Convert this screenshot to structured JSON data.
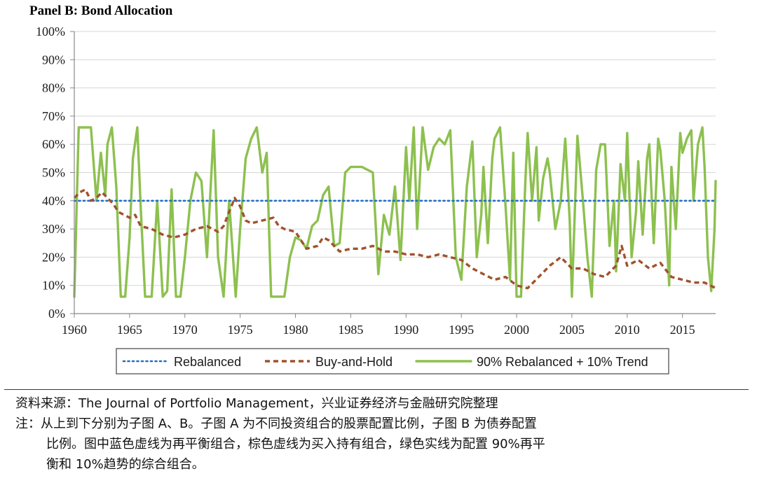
{
  "chart_data": {
    "type": "line",
    "title": "Panel B: Bond Allocation",
    "xlabel": "",
    "ylabel": "",
    "xlim": [
      1960,
      2018
    ],
    "ylim": [
      0,
      100
    ],
    "x_ticks": [
      "1960",
      "1965",
      "1970",
      "1975",
      "1980",
      "1985",
      "1990",
      "1995",
      "2000",
      "2005",
      "2010",
      "2015"
    ],
    "y_ticks": [
      "0%",
      "10%",
      "20%",
      "30%",
      "40%",
      "50%",
      "60%",
      "70%",
      "80%",
      "90%",
      "100%"
    ],
    "grid": "horizontal",
    "legend_position": "bottom",
    "series": [
      {
        "name": "Rebalanced",
        "color": "#1f6fc5",
        "style": "dotted",
        "points": [
          [
            1960,
            40
          ],
          [
            2018,
            40
          ]
        ]
      },
      {
        "name": "Buy-and-Hold",
        "color": "#a0522d",
        "style": "dashed",
        "points": [
          [
            1960,
            41
          ],
          [
            1960.5,
            43
          ],
          [
            1961,
            44
          ],
          [
            1961.5,
            40
          ],
          [
            1962,
            41
          ],
          [
            1962.5,
            43
          ],
          [
            1963,
            41
          ],
          [
            1963.5,
            39
          ],
          [
            1964,
            36
          ],
          [
            1965,
            34
          ],
          [
            1965.5,
            35
          ],
          [
            1966,
            31
          ],
          [
            1967,
            30
          ],
          [
            1968,
            28
          ],
          [
            1969,
            27
          ],
          [
            1970,
            28
          ],
          [
            1971,
            30
          ],
          [
            1972,
            31
          ],
          [
            1973,
            29
          ],
          [
            1973.5,
            31
          ],
          [
            1974,
            36
          ],
          [
            1974.5,
            41
          ],
          [
            1975,
            38
          ],
          [
            1975.5,
            33
          ],
          [
            1976,
            32
          ],
          [
            1977,
            33
          ],
          [
            1978,
            34
          ],
          [
            1978.5,
            31
          ],
          [
            1979,
            30
          ],
          [
            1980,
            29
          ],
          [
            1981,
            23
          ],
          [
            1982,
            24
          ],
          [
            1982.5,
            27
          ],
          [
            1983,
            26
          ],
          [
            1984,
            22
          ],
          [
            1985,
            23
          ],
          [
            1986,
            23
          ],
          [
            1987,
            24
          ],
          [
            1988,
            22
          ],
          [
            1989,
            22
          ],
          [
            1990,
            21
          ],
          [
            1991,
            21
          ],
          [
            1992,
            20
          ],
          [
            1993,
            21
          ],
          [
            1994,
            20
          ],
          [
            1995,
            19
          ],
          [
            1996,
            16
          ],
          [
            1997,
            14
          ],
          [
            1998,
            12
          ],
          [
            1999,
            13
          ],
          [
            2000,
            10
          ],
          [
            2001,
            9
          ],
          [
            2002,
            13
          ],
          [
            2003,
            17
          ],
          [
            2004,
            20
          ],
          [
            2005,
            16
          ],
          [
            2006,
            16
          ],
          [
            2007,
            14
          ],
          [
            2008,
            13
          ],
          [
            2009,
            17
          ],
          [
            2009.5,
            24
          ],
          [
            2010,
            17
          ],
          [
            2011,
            19
          ],
          [
            2012,
            16
          ],
          [
            2013,
            18
          ],
          [
            2014,
            13
          ],
          [
            2015,
            12
          ],
          [
            2016,
            11
          ],
          [
            2017,
            11
          ],
          [
            2018,
            9
          ]
        ]
      },
      {
        "name": "90% Rebalanced + 10% Trend",
        "color": "#8dc04f",
        "style": "solid",
        "points": [
          [
            1960,
            6
          ],
          [
            1960.4,
            66
          ],
          [
            1961.5,
            66
          ],
          [
            1962,
            40
          ],
          [
            1962.4,
            57
          ],
          [
            1962.8,
            42
          ],
          [
            1963,
            60
          ],
          [
            1963.4,
            66
          ],
          [
            1963.8,
            45
          ],
          [
            1964.2,
            6
          ],
          [
            1964.6,
            6
          ],
          [
            1965,
            27
          ],
          [
            1965.3,
            55
          ],
          [
            1965.7,
            66
          ],
          [
            1966,
            38
          ],
          [
            1966.4,
            6
          ],
          [
            1967,
            6
          ],
          [
            1967.5,
            40
          ],
          [
            1968,
            6
          ],
          [
            1968.4,
            8
          ],
          [
            1968.8,
            44
          ],
          [
            1969.2,
            6
          ],
          [
            1969.6,
            6
          ],
          [
            1970,
            20
          ],
          [
            1970.5,
            40
          ],
          [
            1971,
            50
          ],
          [
            1971.5,
            47
          ],
          [
            1972,
            20
          ],
          [
            1972.6,
            65
          ],
          [
            1973,
            20
          ],
          [
            1973.5,
            6
          ],
          [
            1974,
            40
          ],
          [
            1974.6,
            6
          ],
          [
            1975,
            30
          ],
          [
            1975.5,
            55
          ],
          [
            1976,
            62
          ],
          [
            1976.5,
            66
          ],
          [
            1977,
            50
          ],
          [
            1977.4,
            57
          ],
          [
            1977.8,
            6
          ],
          [
            1978.5,
            6
          ],
          [
            1979,
            6
          ],
          [
            1979.5,
            20
          ],
          [
            1980,
            27
          ],
          [
            1980.5,
            26
          ],
          [
            1981,
            23
          ],
          [
            1981.5,
            31
          ],
          [
            1982,
            33
          ],
          [
            1982.5,
            42
          ],
          [
            1983,
            45
          ],
          [
            1983.5,
            24
          ],
          [
            1984,
            25
          ],
          [
            1984.5,
            50
          ],
          [
            1985,
            52
          ],
          [
            1986,
            52
          ],
          [
            1987,
            50
          ],
          [
            1987.5,
            14
          ],
          [
            1988,
            35
          ],
          [
            1988.5,
            28
          ],
          [
            1989,
            45
          ],
          [
            1989.5,
            19
          ],
          [
            1990,
            59
          ],
          [
            1990.3,
            40
          ],
          [
            1990.7,
            66
          ],
          [
            1991,
            30
          ],
          [
            1991.5,
            66
          ],
          [
            1992,
            51
          ],
          [
            1992.5,
            59
          ],
          [
            1993,
            62
          ],
          [
            1993.5,
            60
          ],
          [
            1994,
            65
          ],
          [
            1994.5,
            20
          ],
          [
            1995,
            12
          ],
          [
            1995.5,
            45
          ],
          [
            1996,
            61
          ],
          [
            1996.4,
            20
          ],
          [
            1996.8,
            35
          ],
          [
            1997,
            52
          ],
          [
            1997.4,
            25
          ],
          [
            1997.8,
            55
          ],
          [
            1998,
            62
          ],
          [
            1998.5,
            66
          ],
          [
            1999,
            38
          ],
          [
            1999.4,
            12
          ],
          [
            1999.7,
            57
          ],
          [
            2000,
            6
          ],
          [
            2000.4,
            6
          ],
          [
            2000.8,
            48
          ],
          [
            2001,
            64
          ],
          [
            2001.4,
            40
          ],
          [
            2001.8,
            59
          ],
          [
            2002,
            33
          ],
          [
            2002.4,
            48
          ],
          [
            2002.8,
            55
          ],
          [
            2003,
            50
          ],
          [
            2003.5,
            30
          ],
          [
            2004,
            40
          ],
          [
            2004.4,
            62
          ],
          [
            2004.8,
            33
          ],
          [
            2005,
            6
          ],
          [
            2005.5,
            63
          ],
          [
            2006,
            40
          ],
          [
            2006.4,
            20
          ],
          [
            2006.8,
            6
          ],
          [
            2007.2,
            51
          ],
          [
            2007.6,
            60
          ],
          [
            2008,
            60
          ],
          [
            2008.4,
            24
          ],
          [
            2008.8,
            40
          ],
          [
            2009,
            15
          ],
          [
            2009.4,
            53
          ],
          [
            2009.8,
            40
          ],
          [
            2010,
            64
          ],
          [
            2010.4,
            20
          ],
          [
            2010.8,
            36
          ],
          [
            2011,
            54
          ],
          [
            2011.4,
            28
          ],
          [
            2011.8,
            55
          ],
          [
            2012,
            60
          ],
          [
            2012.4,
            25
          ],
          [
            2012.8,
            62
          ],
          [
            2013,
            58
          ],
          [
            2013.4,
            40
          ],
          [
            2013.8,
            10
          ],
          [
            2014,
            52
          ],
          [
            2014.4,
            30
          ],
          [
            2014.8,
            64
          ],
          [
            2015,
            57
          ],
          [
            2015.4,
            62
          ],
          [
            2015.8,
            65
          ],
          [
            2016,
            40
          ],
          [
            2016.4,
            60
          ],
          [
            2016.8,
            66
          ],
          [
            2017,
            52
          ],
          [
            2017.3,
            20
          ],
          [
            2017.6,
            8
          ],
          [
            2017.9,
            30
          ],
          [
            2018,
            47
          ]
        ]
      }
    ]
  },
  "notes": {
    "source_label": "资料来源：",
    "source_text": "The Journal of Portfolio Management，兴业证券经济与金融研究院整理",
    "note_label": "注：",
    "note_line1": "从上到下分别为子图 A、B。子图 A 为不同投资组合的股票配置比例，子图 B 为债券配置",
    "note_line2": "比例。图中蓝色虚线为再平衡组合，棕色虚线为买入持有组合，绿色实线为配置 90%再平",
    "note_line3": "衡和 10%趋势的综合组合。"
  }
}
